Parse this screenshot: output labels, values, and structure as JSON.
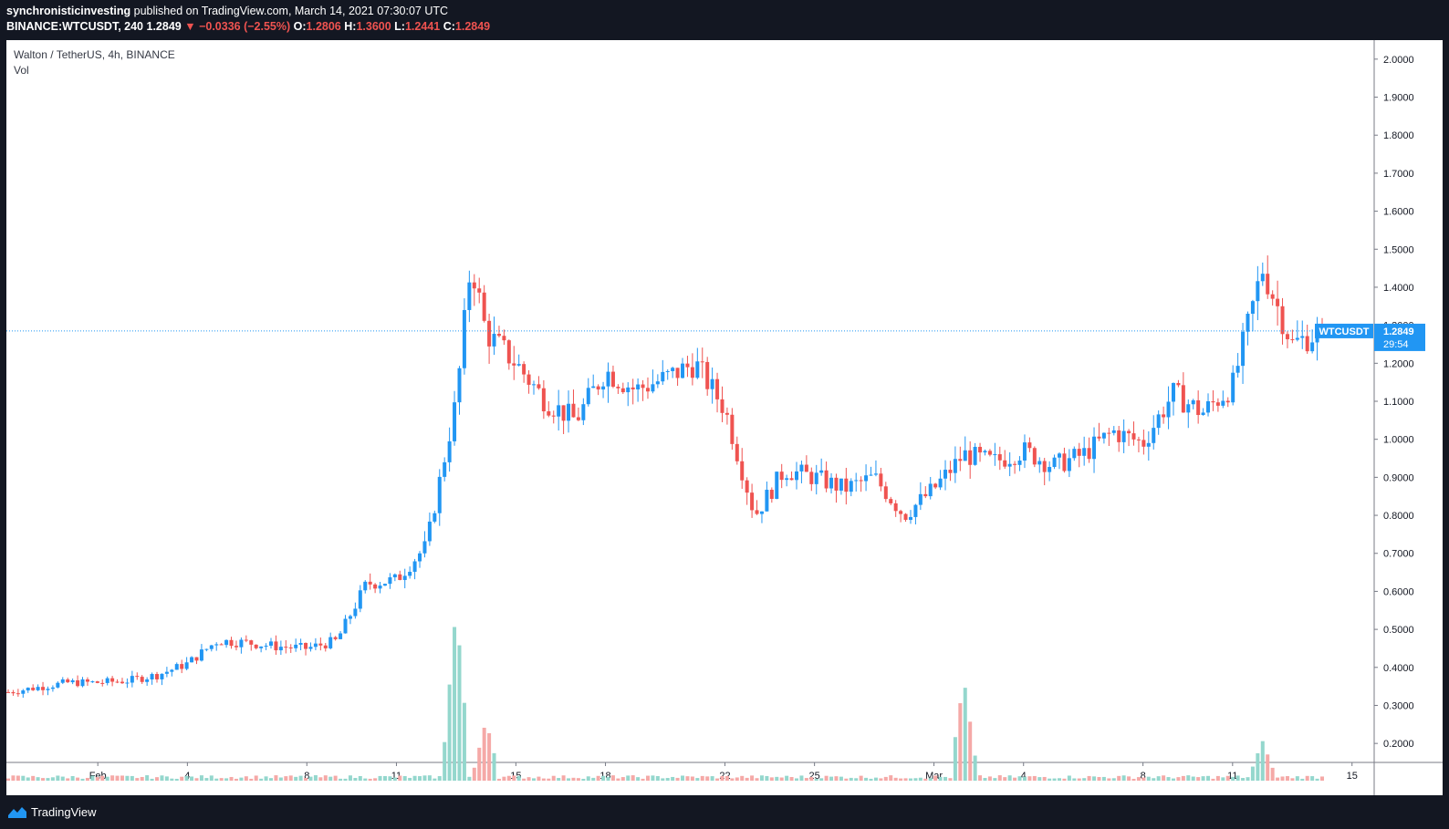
{
  "header": {
    "author": "synchronisticinvesting",
    "published_text": " published on TradingView.com, March 14, 2021 07:30:07 UTC",
    "symbol_line": "BINANCE:WTCUSDT, 240",
    "last": "1.2849",
    "change": "−0.0336 (−2.55%)",
    "o_label": "O:",
    "o": "1.2806",
    "h_label": "H:",
    "h": "1.3600",
    "l_label": "L:",
    "l": "1.2441",
    "c_label": "C:",
    "c": "1.2849"
  },
  "legend": {
    "title": "Walton / TetherUS, 4h, BINANCE",
    "vol": "Vol"
  },
  "price_tag": {
    "symbol": "WTCUSDT",
    "price": "1.2849",
    "countdown": "29:54"
  },
  "footer": {
    "brand": "TradingView"
  },
  "colors": {
    "up": "#2196f3",
    "down": "#ef5350",
    "vol_up": "#94d7cd",
    "vol_down": "#f5a9a7",
    "tag": "#2196f3"
  },
  "chart_data": {
    "type": "candlestick",
    "x_ticks": [
      "Feb",
      "4",
      "8",
      "11",
      "15",
      "18",
      "22",
      "25",
      "Mar",
      "4",
      "8",
      "11",
      "15"
    ],
    "y_ticks": [
      "2.0000",
      "1.9000",
      "1.8000",
      "1.7000",
      "1.6000",
      "1.5000",
      "1.4000",
      "1.3000",
      "1.2000",
      "1.1000",
      "1.0000",
      "0.9000",
      "0.8000",
      "0.7000",
      "0.6000",
      "0.5000",
      "0.4000",
      "0.3000",
      "0.2000"
    ],
    "ylim": [
      0.15,
      2.05
    ],
    "last_price": 1.2849,
    "price_points": [
      [
        "Jan 29",
        0.335
      ],
      [
        "Jan 31",
        0.36
      ],
      [
        "Feb 1",
        0.36
      ],
      [
        "Feb 2",
        0.365
      ],
      [
        "Feb 3",
        0.38
      ],
      [
        "Feb 4",
        0.41
      ],
      [
        "Feb 5",
        0.47
      ],
      [
        "Feb 6",
        0.465
      ],
      [
        "Feb 7",
        0.455
      ],
      [
        "Feb 8",
        0.45
      ],
      [
        "Feb 9",
        0.47
      ],
      [
        "Feb 10",
        0.62
      ],
      [
        "Feb 11",
        0.63
      ],
      [
        "Feb 12",
        0.72
      ],
      [
        "Feb 13",
        1.1
      ],
      [
        "Feb 13.5",
        1.47
      ],
      [
        "Feb 14",
        1.28
      ],
      [
        "Feb 15",
        1.2
      ],
      [
        "Feb 16",
        1.1
      ],
      [
        "Feb 17",
        1.05
      ],
      [
        "Feb 18",
        1.18
      ],
      [
        "Feb 19",
        1.13
      ],
      [
        "Feb 20",
        1.16
      ],
      [
        "Feb 21",
        1.2
      ],
      [
        "Feb 22",
        1.08
      ],
      [
        "Feb 23",
        0.8
      ],
      [
        "Feb 24",
        0.92
      ],
      [
        "Feb 25",
        0.9
      ],
      [
        "Feb 26",
        0.87
      ],
      [
        "Feb 27",
        0.9
      ],
      [
        "Feb 28",
        0.8
      ],
      [
        "Mar 1",
        0.87
      ],
      [
        "Mar 2",
        0.96
      ],
      [
        "Mar 3",
        0.94
      ],
      [
        "Mar 4",
        0.97
      ],
      [
        "Mar 5",
        0.93
      ],
      [
        "Mar 6",
        0.96
      ],
      [
        "Mar 7",
        1.02
      ],
      [
        "Mar 8",
        0.99
      ],
      [
        "Mar 9",
        1.12
      ],
      [
        "Mar 10",
        1.07
      ],
      [
        "Mar 11",
        1.14
      ],
      [
        "Mar 12",
        1.45
      ],
      [
        "Mar 13",
        1.25
      ],
      [
        "Mar 14",
        1.2849
      ]
    ],
    "volume_spikes": [
      [
        "Feb 13",
        0.95
      ],
      [
        "Feb 14",
        0.33
      ],
      [
        "Mar 2",
        0.56
      ],
      [
        "Mar 12",
        0.22
      ]
    ]
  }
}
